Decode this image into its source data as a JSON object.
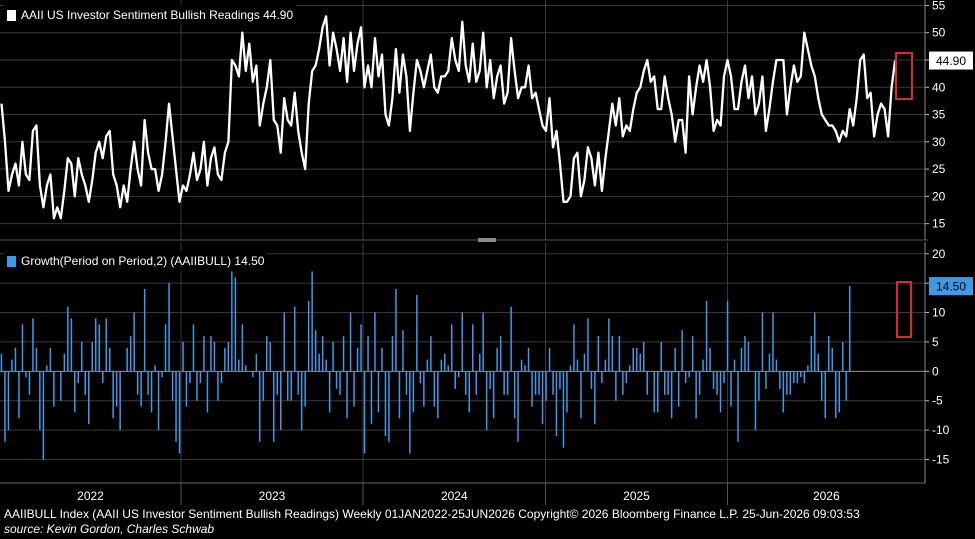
{
  "colors": {
    "background": "#000000",
    "line": "#ffffff",
    "bars": "#3d9ae8",
    "grid": "#3a3a3a",
    "highlight": "#e0262b",
    "value_tag_top": "#ffffff",
    "value_tag_bottom": "#3d9ae8"
  },
  "top_legend": "AAII US Investor Sentiment Bullish Readings 44.90",
  "bottom_legend": "Growth(Period on Period,2) (AAIIBULL) 14.50",
  "footer": {
    "line1": "AAIIBULL Index (AAII US Investor Sentiment Bullish Readings) Weekly 01JAN2022-25JUN2026 Copyright© 2026 Bloomberg Finance L.P. 25-Jun-2026 09:03:53",
    "source": "source: Kevin Gordon, Charles Schwab"
  },
  "chart_data": [
    {
      "type": "line",
      "title": "AAII US Investor Sentiment Bullish Readings",
      "last_value_label": "44.90",
      "ylim": [
        12,
        56
      ],
      "yticks": [
        15,
        20,
        25,
        30,
        35,
        40,
        45,
        50,
        55
      ],
      "x_start": "2022-01-06",
      "x_interval": "weekly",
      "xticks": [
        "2022",
        "2023",
        "2024",
        "2025",
        "2026"
      ],
      "grid": true,
      "series": [
        {
          "name": "AAII US Investor Sentiment Bullish Readings",
          "values": [
            37,
            30,
            21,
            24,
            26,
            22,
            30,
            24,
            23,
            32,
            33,
            22,
            18,
            22,
            24,
            16,
            18,
            16,
            21,
            27,
            26,
            20,
            27,
            24,
            22,
            19,
            23,
            28,
            30,
            27,
            31,
            32,
            24,
            22,
            18,
            22,
            19,
            25,
            30,
            25,
            22,
            34,
            28,
            25,
            25,
            21,
            24,
            30,
            37,
            31,
            25,
            19,
            22,
            21,
            24,
            28,
            23,
            25,
            30,
            22,
            27,
            29,
            24,
            23,
            28,
            30,
            45,
            44,
            42,
            50,
            43,
            48,
            41,
            44,
            33,
            37,
            40,
            45,
            34,
            33,
            28,
            38,
            34,
            33,
            39,
            32,
            28,
            25,
            37,
            43,
            44,
            47,
            51,
            53,
            44,
            50,
            47,
            43,
            49,
            41,
            50,
            43,
            48,
            51,
            40,
            44,
            40,
            49,
            42,
            46,
            35,
            33,
            38,
            47,
            39,
            46,
            42,
            32,
            39,
            45,
            43,
            40,
            43,
            46,
            40,
            39,
            42,
            42,
            43,
            49,
            45,
            43,
            52,
            44,
            41,
            48,
            41,
            43,
            50,
            40,
            45,
            38,
            42,
            44,
            37,
            39,
            49,
            43,
            38,
            40,
            40,
            44,
            38,
            39,
            36,
            33,
            32,
            38,
            29,
            32,
            26,
            19,
            19,
            20,
            27,
            28,
            20,
            23,
            29,
            27,
            22,
            28,
            21,
            27,
            32,
            37,
            33,
            38,
            31,
            33,
            32,
            36,
            39,
            40,
            43,
            45,
            41,
            42,
            36,
            36,
            42,
            38,
            35,
            30,
            34,
            34,
            28,
            42,
            35,
            40,
            44,
            41,
            45,
            40,
            32,
            34,
            33,
            42,
            45,
            42,
            36,
            36,
            41,
            44,
            38,
            42,
            35,
            37,
            42,
            32,
            36,
            41,
            45,
            45,
            45,
            35,
            40,
            44,
            41,
            42,
            50,
            47,
            44,
            42,
            38,
            35,
            34,
            33,
            33,
            32,
            30,
            32,
            31,
            36,
            33,
            38,
            45,
            46,
            38,
            39,
            31,
            35,
            37,
            36,
            31,
            40,
            44.9
          ]
        }
      ]
    },
    {
      "type": "bar",
      "title": "Growth(Period on Period,2) (AAIIBULL)",
      "last_value_label": "14.50",
      "ylim": [
        -19,
        22
      ],
      "yticks": [
        -15,
        -10,
        -5,
        0,
        5,
        10,
        15,
        20
      ],
      "x_start": "2022-01-06",
      "x_interval": "weekly",
      "xticks": [
        "2022",
        "2023",
        "2024",
        "2025",
        "2026"
      ],
      "grid": true,
      "series": [
        {
          "name": "Growth(Period on Period,2) (AAIIBULL)",
          "values": [
            3,
            -12,
            -10,
            2,
            4,
            -8,
            8,
            -1,
            -4,
            9,
            4,
            -10,
            -15,
            1,
            4,
            -6,
            0,
            -5,
            3,
            11,
            9,
            -7,
            -2,
            5,
            -4,
            -9,
            5,
            9,
            8,
            -2,
            9,
            4,
            -8,
            -6,
            -10,
            0,
            4,
            6,
            10,
            -4,
            -6,
            14,
            -4,
            -7,
            1,
            -10,
            -1,
            8,
            15,
            -5,
            -12,
            -14,
            5,
            -6,
            -2,
            8,
            -5,
            -2,
            6,
            -7,
            6,
            5,
            -5,
            -2,
            4,
            5,
            17,
            16,
            2,
            8,
            1,
            0,
            -1,
            3,
            -12,
            -5,
            6,
            5,
            -12,
            -4,
            -10,
            10,
            -5,
            -5,
            11,
            -4,
            -10,
            -6,
            12,
            17,
            7,
            3,
            6,
            2,
            -7,
            5,
            -3,
            -4,
            6,
            -8,
            10,
            -6,
            4,
            8,
            -14,
            6,
            -9,
            10,
            -7,
            4,
            -11,
            -12,
            6,
            14,
            -8,
            7,
            -4,
            -14,
            -7,
            13,
            -2,
            -6,
            2,
            6,
            -6,
            -8,
            2,
            3,
            1,
            8,
            -3,
            -1,
            10,
            -4,
            -7,
            8,
            -4,
            3,
            10,
            -10,
            -3,
            -8,
            4,
            6,
            -4,
            -4,
            11,
            -8,
            -12,
            2,
            1,
            4,
            -6,
            -4,
            -4,
            -9,
            -5,
            4,
            -4,
            -11,
            -3,
            -13,
            -7,
            1,
            8,
            2,
            -8,
            3,
            9,
            -3,
            -9,
            6,
            -2,
            2,
            9,
            6,
            -5,
            6,
            -4,
            -2,
            1,
            4,
            4,
            3,
            5,
            -4,
            0,
            -7,
            -7,
            5,
            -4,
            -4,
            -8,
            4,
            -6,
            7,
            -2,
            -1,
            6,
            -8,
            -4,
            2,
            12,
            4,
            -3,
            -4,
            -7,
            -2,
            12,
            -6,
            2,
            -12,
            4,
            6,
            5,
            0,
            -10,
            -5,
            10,
            -3,
            3,
            10,
            2,
            -3,
            -7,
            -4,
            -4,
            -2,
            -2,
            -1,
            -2,
            1,
            6,
            10,
            3,
            -5,
            -8,
            6,
            4,
            -8,
            -7,
            5,
            -5,
            14.5
          ]
        }
      ]
    }
  ]
}
